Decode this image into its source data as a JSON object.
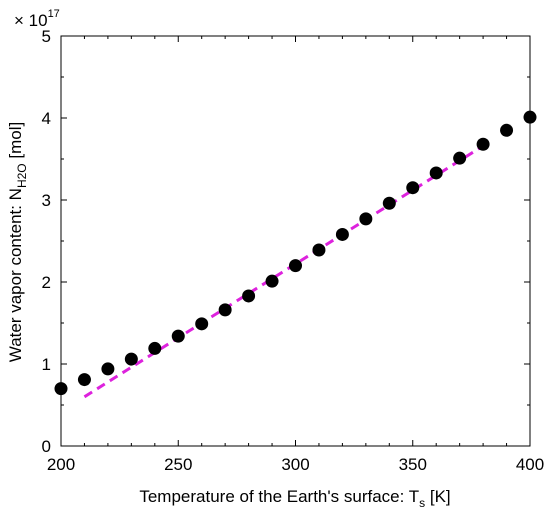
{
  "chart_data": {
    "type": "scatter",
    "title": "",
    "xlabel": {
      "main": "Temperature of the Earth's surface: T",
      "sub": "s",
      "tail": " [K]"
    },
    "ylabel": {
      "main": "Water vapor content: N",
      "sub": "H2O",
      "tail": " [mol]"
    },
    "y_multiplier": {
      "base": "× 10",
      "exp": "17"
    },
    "xlim": [
      200,
      400
    ],
    "ylim": [
      0,
      5
    ],
    "xticks": [
      "200",
      "250",
      "300",
      "350",
      "400"
    ],
    "yticks": [
      "0",
      "1",
      "2",
      "3",
      "4",
      "5"
    ],
    "grid": false,
    "series": [
      {
        "kind": "points",
        "color": "#000000",
        "x": [
          200,
          210,
          220,
          230,
          240,
          250,
          260,
          270,
          280,
          290,
          300,
          310,
          320,
          330,
          340,
          350,
          360,
          370,
          380,
          390,
          400
        ],
        "y": [
          0.7,
          0.81,
          0.94,
          1.06,
          1.19,
          1.34,
          1.49,
          1.66,
          1.83,
          2.01,
          2.2,
          2.39,
          2.58,
          2.77,
          2.96,
          3.15,
          3.33,
          3.51,
          3.68,
          3.85,
          4.01
        ]
      },
      {
        "kind": "dashed-fit",
        "color": "#dd22dd",
        "x": [
          210,
          380
        ],
        "y": [
          0.6,
          3.66
        ]
      }
    ]
  }
}
